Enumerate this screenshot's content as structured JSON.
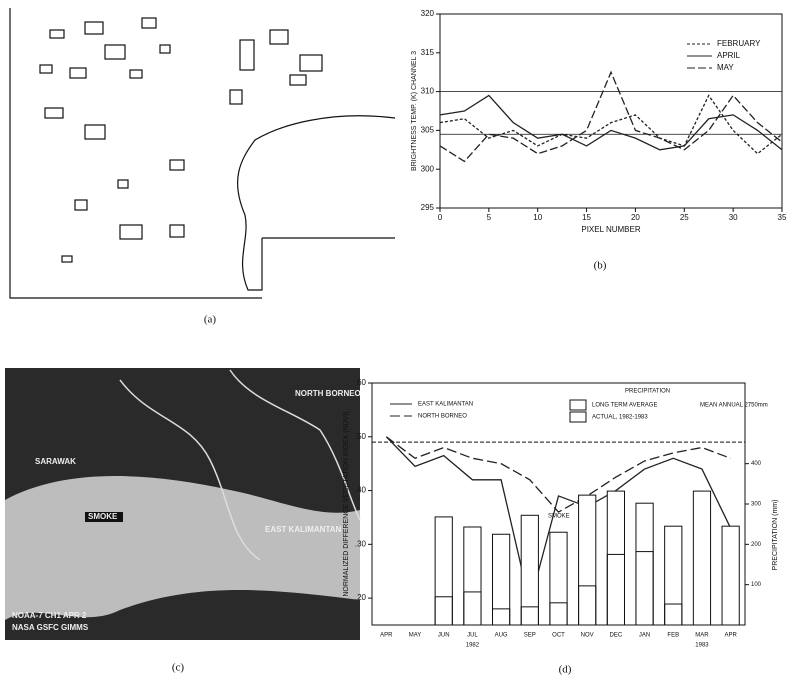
{
  "chart_data": [
    {
      "type": "line",
      "xlabel": "PIXEL NUMBER",
      "ylabel": "BRIGHTNESS TEMP. (K) CHANNEL 3",
      "xlim": [
        0,
        35
      ],
      "xticks": [
        0,
        5,
        10,
        15,
        20,
        25,
        30,
        35
      ],
      "ylim": [
        295,
        320
      ],
      "yticks": [
        295,
        300,
        305,
        310,
        315,
        320
      ],
      "reference_lines": [
        310,
        304.5
      ],
      "x": [
        0,
        2.5,
        5,
        7.5,
        10,
        12.5,
        15,
        17.5,
        20,
        22.5,
        25,
        27.5,
        30,
        32.5,
        35
      ],
      "series": [
        {
          "name": "FEBRUARY",
          "color": "#222",
          "dash": "3,2",
          "values": [
            306,
            306.5,
            304,
            305,
            303,
            304.5,
            304,
            306,
            307,
            304,
            303,
            309.5,
            305,
            302,
            304.5
          ]
        },
        {
          "name": "APRIL",
          "color": "#222",
          "dash": "",
          "values": [
            307,
            307.5,
            309.5,
            306,
            304,
            304.5,
            303,
            305,
            304,
            302.5,
            303,
            306.5,
            307,
            305,
            302.5
          ]
        },
        {
          "name": "MAY",
          "color": "#222",
          "dash": "8,3",
          "values": [
            303,
            301,
            304.5,
            304,
            302,
            303,
            305,
            312.5,
            305,
            304,
            302.5,
            305,
            309.5,
            306,
            303.5
          ]
        }
      ],
      "caption": "(b)"
    },
    {
      "type": "combo",
      "ylabel": "NORMALIZED DIFFERENCE VEGETATION INDEX (NDVI)",
      "y2label": "PRECIPITATION (mm)",
      "categories": [
        "APR",
        "MAY",
        "JUN",
        "JUL",
        "AUG",
        "SEP",
        "OCT",
        "NOV",
        "DEC",
        "JAN",
        "FEB",
        "MAR",
        "APR"
      ],
      "category_sublabels": [
        null,
        null,
        null,
        "1982",
        null,
        null,
        null,
        null,
        null,
        null,
        null,
        "1983",
        null
      ],
      "ylim": [
        0.15,
        0.6
      ],
      "yticks": [
        {
          "value": 0.2,
          "label": ".20"
        },
        {
          "value": 0.3,
          "label": ".30"
        },
        {
          "value": 0.4,
          "label": ".40"
        },
        {
          "value": 0.5,
          "label": ".50"
        },
        {
          "value": 0.6,
          "label": ".60"
        }
      ],
      "y2lim": [
        0,
        600
      ],
      "y2ticks": [
        100,
        200,
        300,
        400
      ],
      "reference_line": 0.49,
      "series": [
        {
          "name": "EAST KALIMANTAN",
          "color": "#222",
          "dash": "",
          "values": [
            0.5,
            0.445,
            0.465,
            0.42,
            0.42,
            0.19,
            0.39,
            0.37,
            0.4,
            0.44,
            0.46,
            0.44,
            0.33
          ]
        },
        {
          "name": "NORTH BORNEO",
          "color": "#222",
          "dash": "10,4",
          "values": [
            0.5,
            0.46,
            0.48,
            0.46,
            0.45,
            0.42,
            0.36,
            0.39,
            0.425,
            0.455,
            0.47,
            0.48,
            0.46
          ]
        },
        {
          "name": "LONG TERM AVERAGE",
          "axis": "y2",
          "color": "#fff",
          "values": [
            null,
            null,
            268,
            243,
            225,
            272,
            230,
            322,
            332,
            302,
            245,
            332,
            245
          ]
        },
        {
          "name": "ACTUAL, 1982-1983",
          "axis": "y2",
          "color": "#fff",
          "values": [
            null,
            null,
            70,
            82,
            40,
            45,
            55,
            97,
            175,
            182,
            52,
            null,
            null
          ]
        }
      ],
      "legend_title": "PRECIPITATION",
      "annotations": [
        "SMOKE",
        "MEAN ANNUAL 2750mm"
      ],
      "caption": "(d)"
    }
  ],
  "panel_a": {
    "caption": "(a)"
  },
  "panel_c": {
    "caption": "(c)",
    "labels": [
      "SARAWAK",
      "NORTH BORNEO",
      "EAST KALIMANTAN",
      "SMOKE",
      "NOAA-7 CH1 APR 2",
      "NASA GSFC GIMMS"
    ]
  }
}
